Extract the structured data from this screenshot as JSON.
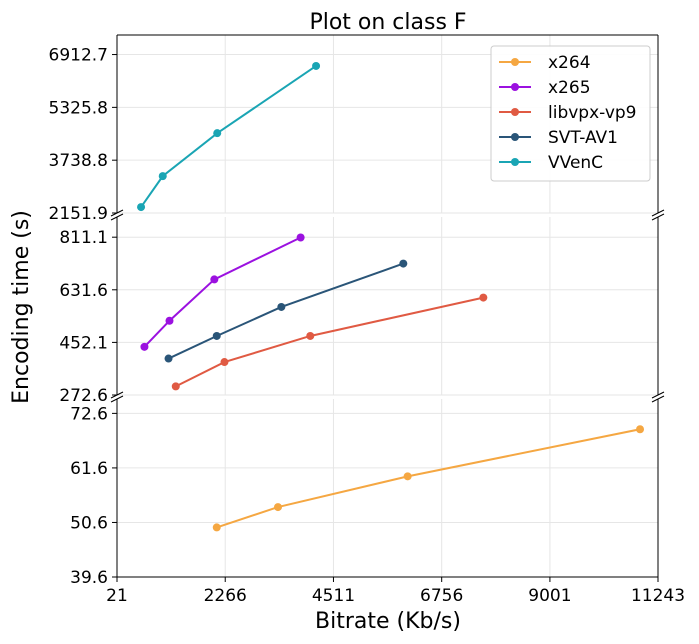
{
  "chart_data": {
    "type": "line",
    "title": "Plot on class F",
    "xlabel": "Bitrate (Kb/s)",
    "ylabel": "Encoding time (s)",
    "xlim": [
      21,
      11243
    ],
    "x_ticks": [
      "21",
      "2266",
      "4511",
      "6756",
      "9001",
      "11243"
    ],
    "grid": true,
    "legend_position": "top-right",
    "broken_y_axis": true,
    "panels": [
      {
        "id": "top",
        "ylim": [
          2151.9,
          7500
        ],
        "y_ticks": [
          "2151.9",
          "3738.8",
          "5325.8",
          "6912.7"
        ]
      },
      {
        "id": "mid",
        "ylim": [
          272.6,
          880
        ],
        "y_ticks": [
          "272.6",
          "452.1",
          "631.6",
          "811.1"
        ]
      },
      {
        "id": "bottom",
        "ylim": [
          39.6,
          75.5
        ],
        "y_ticks": [
          "39.6",
          "50.6",
          "61.6",
          "72.6"
        ]
      }
    ],
    "series": [
      {
        "name": "x264",
        "color": "#f5a742",
        "panel": "bottom",
        "points": [
          [
            2090,
            49.6
          ],
          [
            3360,
            53.7
          ],
          [
            6050,
            59.9
          ],
          [
            10870,
            69.4
          ]
        ]
      },
      {
        "name": "x265",
        "color": "#9b11e0",
        "panel": "mid",
        "points": [
          [
            590,
            437
          ],
          [
            1110,
            526
          ],
          [
            2040,
            667
          ],
          [
            3830,
            810
          ]
        ]
      },
      {
        "name": "libvpx-vp9",
        "color": "#e05a43",
        "panel": "mid",
        "points": [
          [
            1240,
            302
          ],
          [
            2250,
            385
          ],
          [
            4030,
            474
          ],
          [
            7620,
            605
          ]
        ]
      },
      {
        "name": "SVT-AV1",
        "color": "#2a5578",
        "panel": "mid",
        "points": [
          [
            1090,
            397
          ],
          [
            2090,
            474
          ],
          [
            3430,
            573
          ],
          [
            5960,
            721
          ]
        ]
      },
      {
        "name": "VVenC",
        "color": "#1aa5b4",
        "panel": "top",
        "points": [
          [
            520,
            2330
          ],
          [
            970,
            3260
          ],
          [
            2100,
            4550
          ],
          [
            4150,
            6570
          ]
        ]
      }
    ]
  }
}
